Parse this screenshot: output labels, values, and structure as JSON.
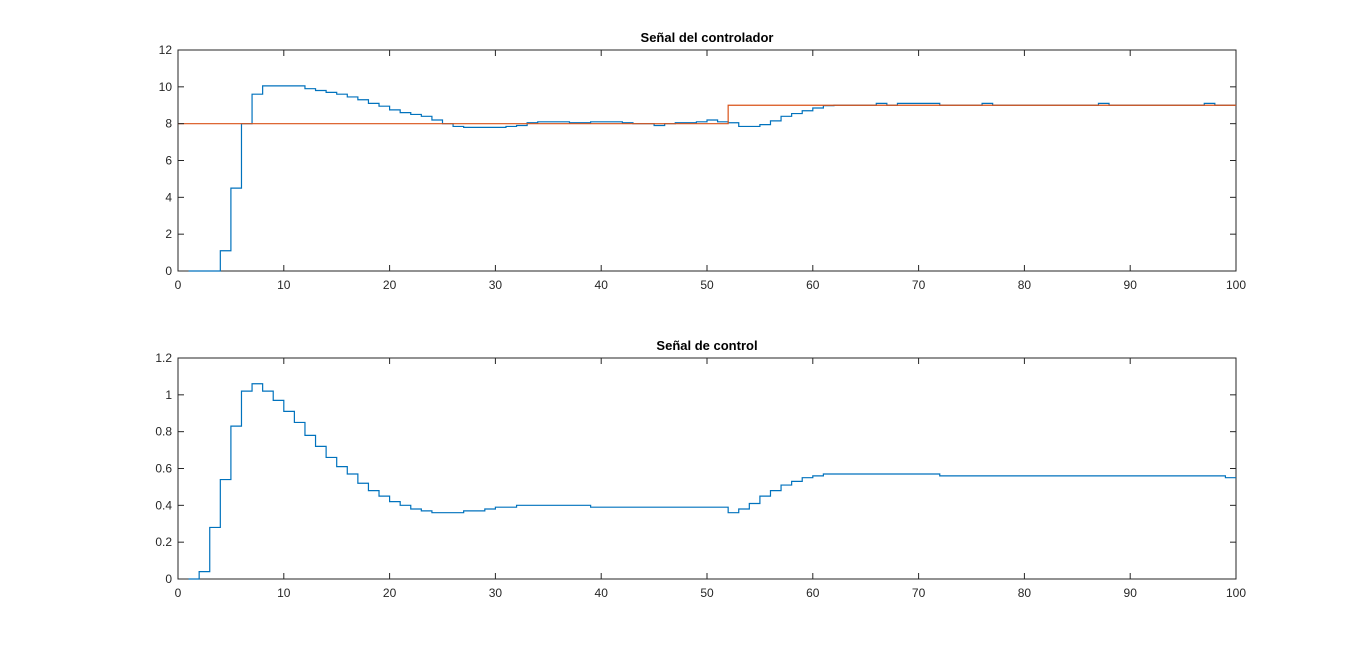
{
  "window": {
    "background": "#ffffff"
  },
  "chart_data": [
    {
      "type": "line",
      "style": "stairs",
      "title": "Señal del controlador",
      "xlabel": "",
      "ylabel": "",
      "xlim": [
        0,
        100
      ],
      "ylim": [
        0,
        12
      ],
      "xticks": [
        0,
        10,
        20,
        30,
        40,
        50,
        60,
        70,
        80,
        90,
        100
      ],
      "xtick_labels": [
        "0",
        "10",
        "20",
        "30",
        "40",
        "50",
        "60",
        "70",
        "80",
        "90",
        "100"
      ],
      "yticks": [
        0,
        2,
        4,
        6,
        8,
        10,
        12
      ],
      "ytick_labels": [
        "0",
        "2",
        "4",
        "6",
        "8",
        "10",
        "12"
      ],
      "grid": false,
      "series": [
        {
          "color": "#0072BD",
          "x": [
            1,
            2,
            3,
            4,
            5,
            6,
            7,
            8,
            9,
            10,
            11,
            12,
            13,
            14,
            15,
            16,
            17,
            18,
            19,
            20,
            21,
            22,
            23,
            24,
            25,
            26,
            27,
            28,
            29,
            30,
            31,
            32,
            33,
            34,
            35,
            36,
            37,
            38,
            39,
            40,
            41,
            42,
            43,
            44,
            45,
            46,
            47,
            48,
            49,
            50,
            51,
            52,
            53,
            54,
            55,
            56,
            57,
            58,
            59,
            60,
            61,
            62,
            63,
            64,
            65,
            66,
            67,
            68,
            69,
            70,
            71,
            72,
            73,
            74,
            75,
            76,
            77,
            78,
            79,
            80,
            81,
            82,
            83,
            84,
            85,
            86,
            87,
            88,
            89,
            90,
            91,
            92,
            93,
            94,
            95,
            96,
            97,
            98,
            99,
            100
          ],
          "y": [
            0,
            0,
            0,
            1.1,
            4.5,
            8.0,
            9.6,
            10.05,
            10.05,
            10.05,
            10.05,
            9.9,
            9.8,
            9.7,
            9.6,
            9.45,
            9.3,
            9.1,
            8.95,
            8.75,
            8.6,
            8.5,
            8.4,
            8.2,
            8.0,
            7.85,
            7.8,
            7.8,
            7.8,
            7.8,
            7.85,
            7.9,
            8.05,
            8.1,
            8.1,
            8.1,
            8.05,
            8.05,
            8.1,
            8.1,
            8.1,
            8.05,
            8.0,
            8.0,
            7.9,
            8.0,
            8.05,
            8.05,
            8.1,
            8.2,
            8.1,
            8.05,
            7.85,
            7.85,
            7.95,
            8.15,
            8.4,
            8.55,
            8.7,
            8.85,
            8.98,
            9.0,
            9.0,
            9.0,
            9.0,
            9.1,
            9.0,
            9.1,
            9.1,
            9.1,
            9.1,
            9.0,
            9.0,
            9.0,
            9.0,
            9.1,
            9.0,
            9.0,
            9.0,
            9.0,
            9.0,
            9.0,
            9.0,
            9.0,
            9.0,
            9.0,
            9.1,
            9.0,
            9.0,
            9.0,
            9.0,
            9.0,
            9.0,
            9.0,
            9.0,
            9.0,
            9.1,
            9.0,
            9.0,
            9.0
          ]
        },
        {
          "color": "#D95319",
          "x": [
            0,
            52,
            52,
            100
          ],
          "y": [
            8,
            8,
            9,
            9
          ]
        }
      ]
    },
    {
      "type": "line",
      "style": "stairs",
      "title": "Señal de control",
      "xlabel": "",
      "ylabel": "",
      "xlim": [
        0,
        100
      ],
      "ylim": [
        0,
        1.2
      ],
      "xticks": [
        0,
        10,
        20,
        30,
        40,
        50,
        60,
        70,
        80,
        90,
        100
      ],
      "xtick_labels": [
        "0",
        "10",
        "20",
        "30",
        "40",
        "50",
        "60",
        "70",
        "80",
        "90",
        "100"
      ],
      "yticks": [
        0,
        0.2,
        0.4,
        0.6,
        0.8,
        1,
        1.2
      ],
      "ytick_labels": [
        "0",
        "0.2",
        "0.4",
        "0.6",
        "0.8",
        "1",
        "1.2"
      ],
      "grid": false,
      "series": [
        {
          "color": "#0072BD",
          "x": [
            1,
            2,
            3,
            4,
            5,
            6,
            7,
            8,
            9,
            10,
            11,
            12,
            13,
            14,
            15,
            16,
            17,
            18,
            19,
            20,
            21,
            22,
            23,
            24,
            25,
            26,
            27,
            28,
            29,
            30,
            31,
            32,
            33,
            34,
            35,
            36,
            37,
            38,
            39,
            40,
            41,
            42,
            43,
            44,
            45,
            46,
            47,
            48,
            49,
            50,
            51,
            52,
            53,
            54,
            55,
            56,
            57,
            58,
            59,
            60,
            61,
            62,
            63,
            64,
            65,
            66,
            67,
            68,
            69,
            70,
            71,
            72,
            73,
            74,
            75,
            76,
            77,
            78,
            79,
            80,
            81,
            82,
            83,
            84,
            85,
            86,
            87,
            88,
            89,
            90,
            91,
            92,
            93,
            94,
            95,
            96,
            97,
            98,
            99,
            100
          ],
          "y": [
            0,
            0.04,
            0.28,
            0.54,
            0.83,
            1.02,
            1.06,
            1.02,
            0.97,
            0.91,
            0.85,
            0.78,
            0.72,
            0.66,
            0.61,
            0.57,
            0.52,
            0.48,
            0.45,
            0.42,
            0.4,
            0.38,
            0.37,
            0.36,
            0.36,
            0.36,
            0.37,
            0.37,
            0.38,
            0.39,
            0.39,
            0.4,
            0.4,
            0.4,
            0.4,
            0.4,
            0.4,
            0.4,
            0.39,
            0.39,
            0.39,
            0.39,
            0.39,
            0.39,
            0.39,
            0.39,
            0.39,
            0.39,
            0.39,
            0.39,
            0.39,
            0.36,
            0.38,
            0.41,
            0.45,
            0.48,
            0.51,
            0.53,
            0.55,
            0.56,
            0.57,
            0.57,
            0.57,
            0.57,
            0.57,
            0.57,
            0.57,
            0.57,
            0.57,
            0.57,
            0.57,
            0.56,
            0.56,
            0.56,
            0.56,
            0.56,
            0.56,
            0.56,
            0.56,
            0.56,
            0.56,
            0.56,
            0.56,
            0.56,
            0.56,
            0.56,
            0.56,
            0.56,
            0.56,
            0.56,
            0.56,
            0.56,
            0.56,
            0.56,
            0.56,
            0.56,
            0.56,
            0.56,
            0.55,
            0.55
          ]
        }
      ]
    }
  ]
}
